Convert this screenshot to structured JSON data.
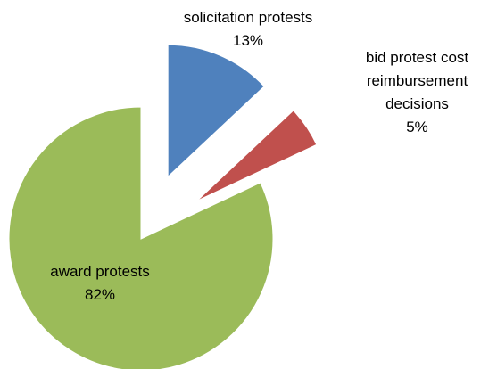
{
  "chart_data": {
    "type": "pie",
    "categories": [
      "solicitation protests",
      "bid protest cost reimbursement decisions",
      "award protests"
    ],
    "values": [
      13,
      5,
      82
    ],
    "value_labels": [
      "13%",
      "5%",
      "82%"
    ],
    "colors": [
      "#4f81bd",
      "#c0504d",
      "#9bbb59"
    ]
  }
}
